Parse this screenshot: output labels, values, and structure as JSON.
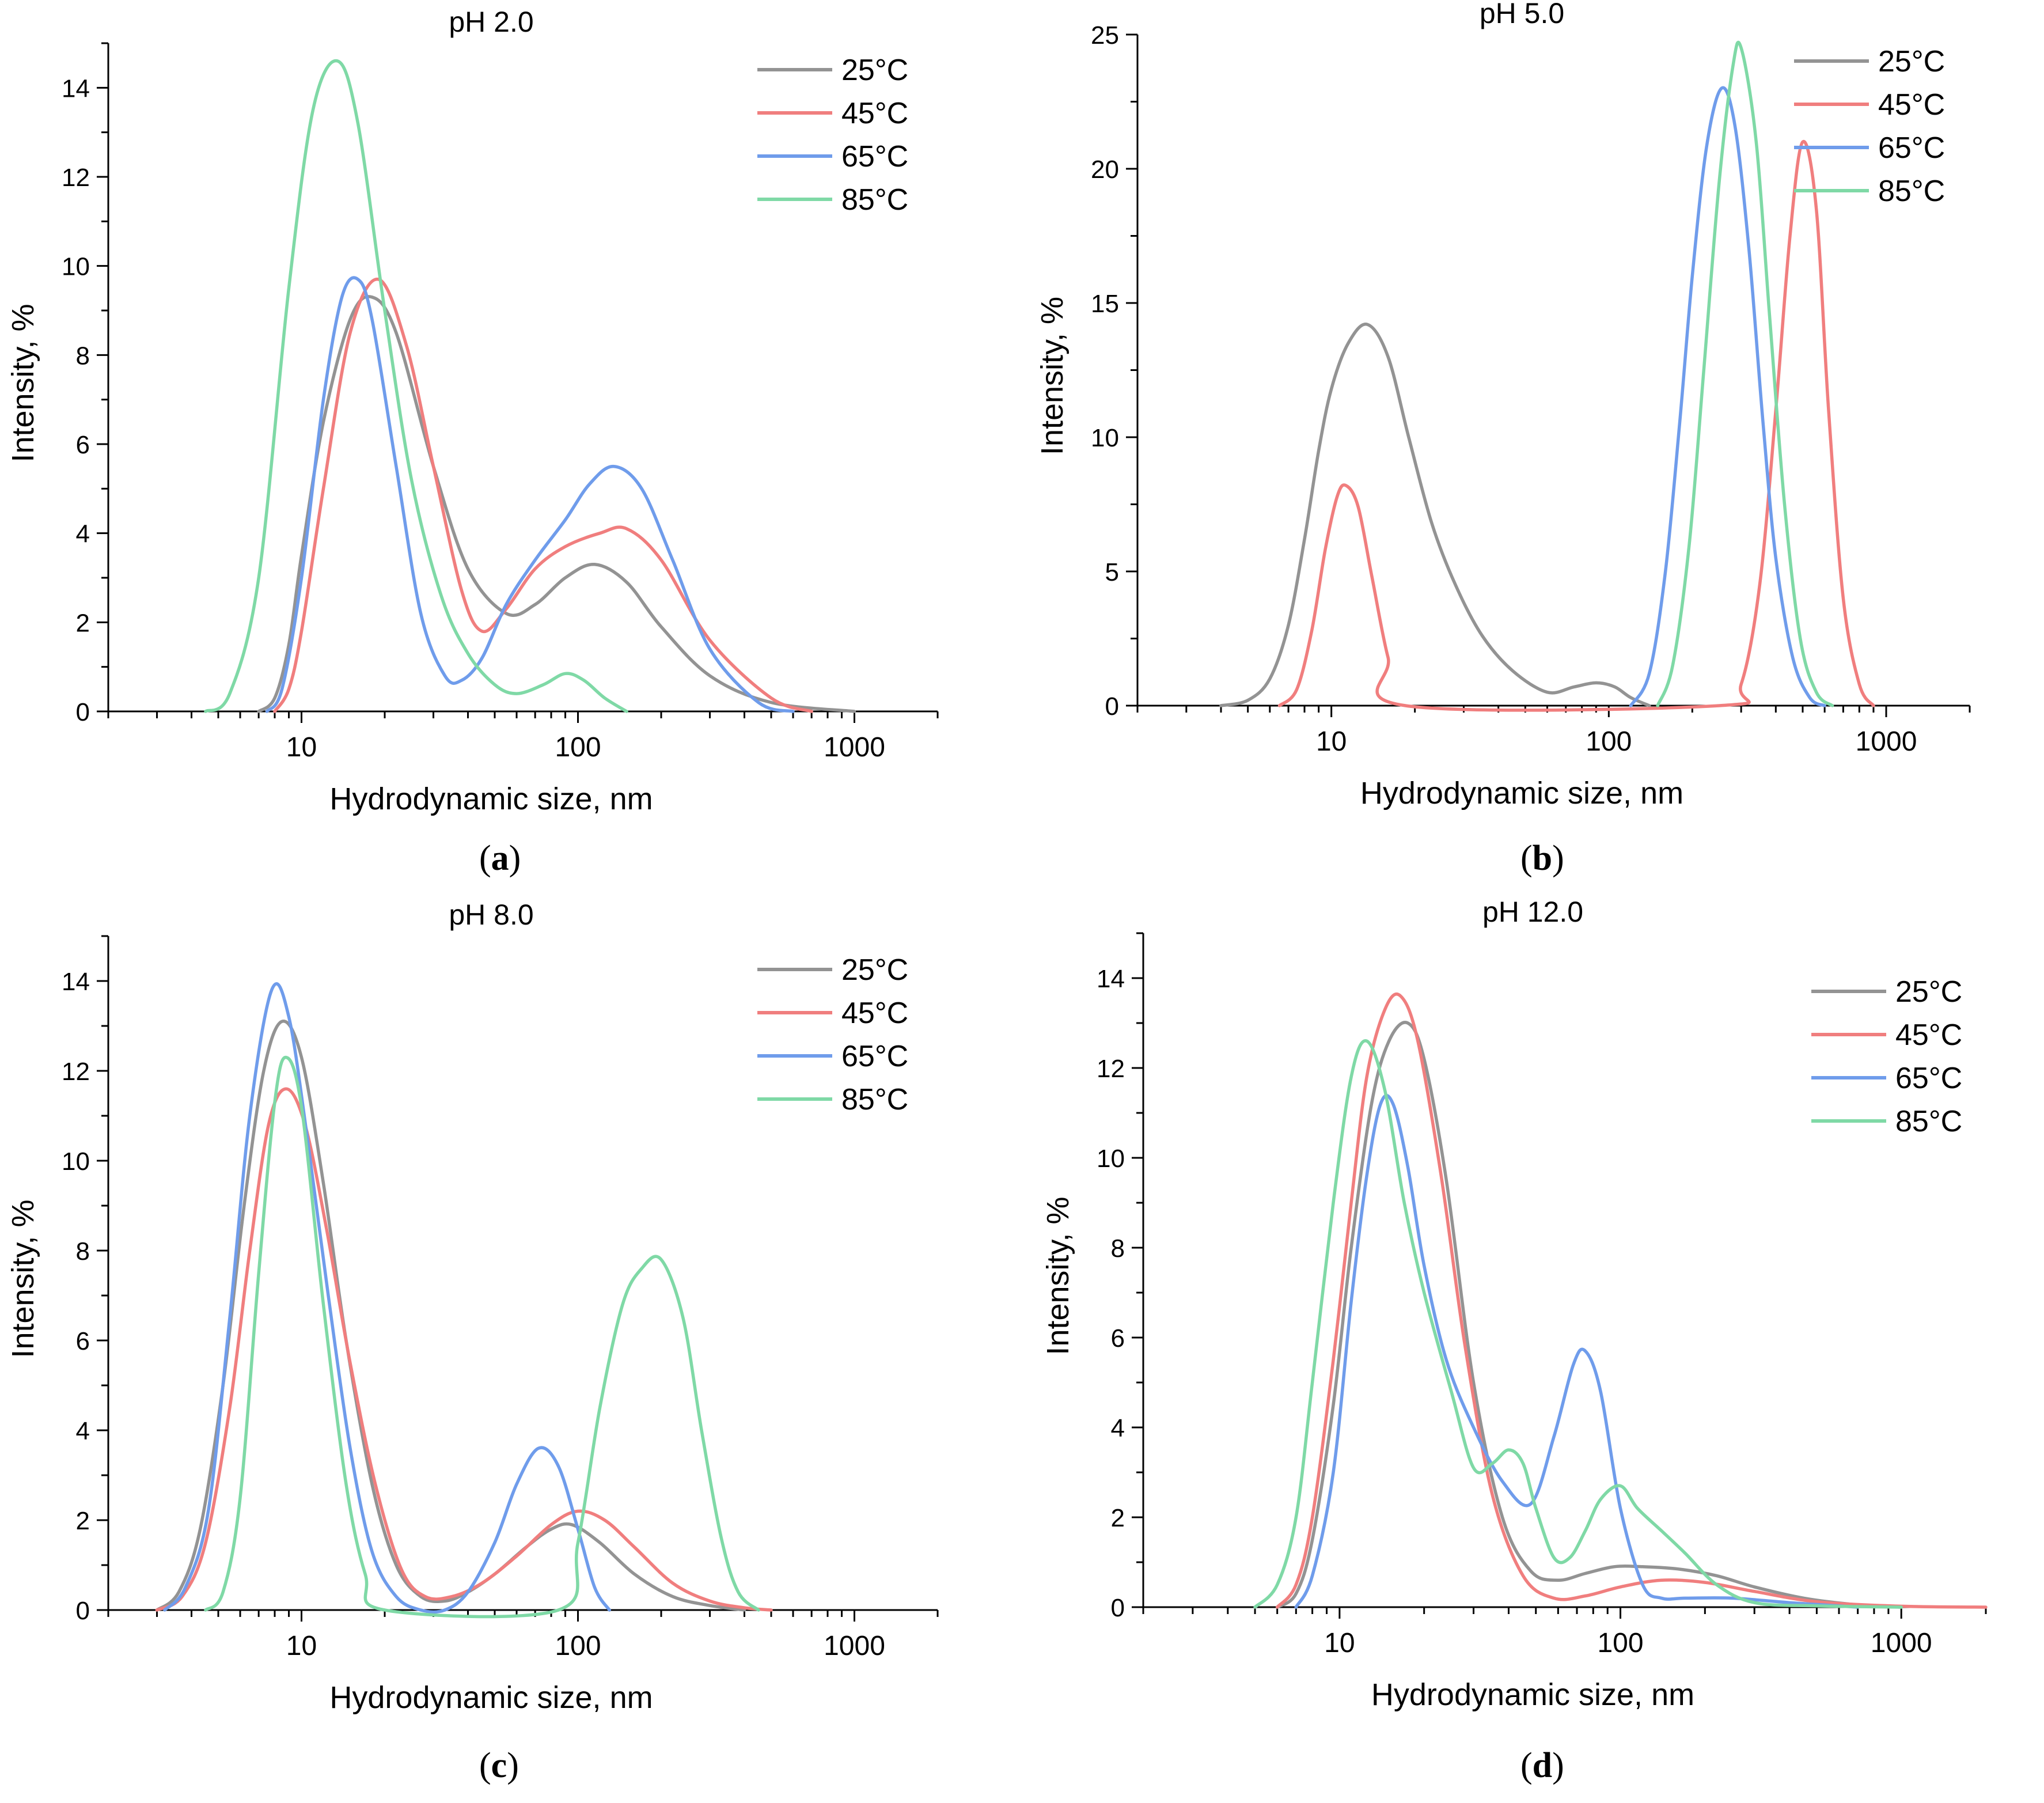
{
  "figure": {
    "legend_title": "",
    "colors": {
      "25C": "#939393",
      "45C": "#f07e7e",
      "65C": "#6f9ceb",
      "85C": "#7fd9a6"
    }
  },
  "panels": [
    {
      "id": "a",
      "caption_label": "a",
      "paren_open": "(",
      "paren_close": ")"
    },
    {
      "id": "b",
      "caption_label": "b",
      "paren_open": "(",
      "paren_close": ")"
    },
    {
      "id": "c",
      "caption_label": "c",
      "paren_open": "(",
      "paren_close": ")"
    },
    {
      "id": "d",
      "caption_label": "d",
      "paren_open": "(",
      "paren_close": ")"
    }
  ],
  "chart_data": [
    {
      "type": "line",
      "title": "pH 2.0",
      "xlabel": "Hydrodynamic size, nm",
      "ylabel": "Intensity, %",
      "xscale": "log",
      "xlim": [
        2.0,
        2000
      ],
      "xticks": [
        10,
        100,
        1000
      ],
      "xtick_labels": [
        "10",
        "100",
        "1000"
      ],
      "ylim": [
        0,
        15
      ],
      "yticks": [
        0,
        2,
        4,
        6,
        8,
        10,
        12,
        14
      ],
      "ytick_labels": [
        "0",
        "2",
        "4",
        "6",
        "8",
        "10",
        "12",
        "14"
      ],
      "legend_position": "top-right",
      "series": [
        {
          "name": "25°C",
          "color": "#939393",
          "x": [
            7,
            8,
            9,
            10,
            12,
            15,
            18,
            22,
            30,
            40,
            55,
            70,
            90,
            115,
            150,
            200,
            300,
            500,
            1000
          ],
          "y": [
            0,
            0.3,
            1.5,
            3.5,
            6.5,
            8.8,
            9.3,
            8.5,
            5.5,
            3.2,
            2.2,
            2.4,
            3.0,
            3.3,
            2.9,
            1.9,
            0.8,
            0.2,
            0
          ]
        },
        {
          "name": "45°C",
          "color": "#f07e7e",
          "x": [
            8,
            9,
            10,
            12,
            15,
            19,
            24,
            30,
            38,
            45,
            55,
            70,
            90,
            120,
            150,
            200,
            300,
            500,
            700
          ],
          "y": [
            0,
            0.5,
            1.8,
            5,
            8.5,
            9.7,
            8.2,
            5.5,
            2.7,
            1.8,
            2.3,
            3.2,
            3.7,
            4.0,
            4.1,
            3.4,
            1.6,
            0.3,
            0
          ]
        },
        {
          "name": "65°C",
          "color": "#6f9ceb",
          "x": [
            7.5,
            8.5,
            10,
            12,
            14,
            16,
            18,
            22,
            27,
            33,
            38,
            45,
            55,
            70,
            90,
            110,
            135,
            170,
            220,
            300,
            450,
            600
          ],
          "y": [
            0,
            0.5,
            3,
            7,
            9.3,
            9.7,
            8.8,
            5.5,
            2.2,
            0.8,
            0.7,
            1.2,
            2.4,
            3.4,
            4.3,
            5.1,
            5.5,
            5.0,
            3.4,
            1.4,
            0.2,
            0
          ]
        },
        {
          "name": "85°C",
          "color": "#7fd9a6",
          "x": [
            4.5,
            5.5,
            7,
            9,
            11,
            13.5,
            16,
            20,
            25,
            32,
            40,
            50,
            60,
            75,
            90,
            105,
            125,
            150
          ],
          "y": [
            0,
            0.4,
            3,
            9.5,
            13.5,
            14.6,
            13.2,
            9,
            5.2,
            2.6,
            1.3,
            0.6,
            0.4,
            0.6,
            0.85,
            0.7,
            0.3,
            0
          ]
        }
      ]
    },
    {
      "type": "line",
      "title": "pH 5.0",
      "xlabel": "Hydrodynamic size, nm",
      "ylabel": "Intensity, %",
      "xscale": "log",
      "xlim": [
        2.0,
        2000
      ],
      "xticks": [
        10,
        100,
        1000
      ],
      "xtick_labels": [
        "10",
        "100",
        "1000"
      ],
      "ylim": [
        0,
        25
      ],
      "yticks": [
        0,
        5,
        10,
        15,
        20,
        25
      ],
      "ytick_labels": [
        "0",
        "5",
        "10",
        "15",
        "20",
        "25"
      ],
      "legend_position": "top-right",
      "series": [
        {
          "name": "25°C",
          "color": "#939393",
          "x": [
            4,
            5,
            6,
            7,
            8,
            9,
            10,
            11.5,
            13.5,
            16,
            19,
            23,
            28,
            35,
            45,
            60,
            75,
            90,
            105,
            120,
            140
          ],
          "y": [
            0,
            0.2,
            1,
            3,
            6.2,
            9.5,
            11.8,
            13.5,
            14.2,
            13.0,
            10,
            6.8,
            4.5,
            2.6,
            1.3,
            0.5,
            0.7,
            0.85,
            0.7,
            0.3,
            0
          ]
        },
        {
          "name": "45°C",
          "color": "#f07e7e",
          "x": [
            6.5,
            7.5,
            8.5,
            9.5,
            10.5,
            11.3,
            12.5,
            14,
            16,
            18.5,
            250,
            300,
            350,
            400,
            450,
            500,
            560,
            620,
            700,
            800,
            900
          ],
          "y": [
            0,
            0.6,
            2.8,
            5.8,
            7.8,
            8.2,
            7.4,
            4.8,
            1.8,
            0,
            0,
            0.8,
            4.5,
            11,
            17.5,
            21,
            18.5,
            11,
            4,
            0.8,
            0
          ]
        },
        {
          "name": "65°C",
          "color": "#6f9ceb",
          "x": [
            120,
            140,
            160,
            180,
            200,
            225,
            255,
            285,
            320,
            360,
            400,
            460,
            530,
            600
          ],
          "y": [
            0,
            1.2,
            5,
            10.5,
            16,
            20.8,
            23,
            21.6,
            17,
            10.5,
            5.5,
            1.8,
            0.3,
            0
          ]
        },
        {
          "name": "85°C",
          "color": "#7fd9a6",
          "x": [
            150,
            170,
            195,
            220,
            250,
            280,
            300,
            340,
            380,
            430,
            490,
            560,
            640
          ],
          "y": [
            0,
            1.5,
            6,
            12.5,
            19.5,
            23.8,
            24.5,
            21,
            14.5,
            7.5,
            2.5,
            0.5,
            0
          ]
        }
      ]
    },
    {
      "type": "line",
      "title": "pH 8.0",
      "xlabel": "Hydrodynamic size, nm",
      "ylabel": "Intensity, %",
      "xscale": "log",
      "xlim": [
        2.0,
        2000
      ],
      "xticks": [
        10,
        100,
        1000
      ],
      "xtick_labels": [
        "10",
        "100",
        "1000"
      ],
      "ylim": [
        0,
        15
      ],
      "yticks": [
        0,
        2,
        4,
        6,
        8,
        10,
        12,
        14
      ],
      "ytick_labels": [
        "0",
        "2",
        "4",
        "6",
        "8",
        "10",
        "12",
        "14"
      ],
      "legend_position": "top-right",
      "series": [
        {
          "name": "25°C",
          "color": "#939393",
          "x": [
            3,
            3.6,
            4.3,
            5.2,
            6.2,
            7.3,
            8.5,
            10,
            12,
            14.5,
            18,
            22,
            27,
            33,
            40,
            50,
            65,
            80,
            95,
            120,
            160,
            220,
            300,
            400
          ],
          "y": [
            0,
            0.4,
            1.8,
            5,
            9,
            12,
            13.1,
            12.3,
            9.5,
            6,
            2.8,
            1,
            0.3,
            0.2,
            0.4,
            0.8,
            1.4,
            1.8,
            1.9,
            1.5,
            0.8,
            0.3,
            0.1,
            0
          ]
        },
        {
          "name": "45°C",
          "color": "#f07e7e",
          "x": [
            3,
            3.7,
            4.5,
            5.5,
            6.5,
            7.6,
            8.8,
            10.3,
            12.3,
            15,
            18.5,
            23,
            28,
            35,
            45,
            60,
            80,
            100,
            125,
            160,
            220,
            300,
            400,
            500
          ],
          "y": [
            0,
            0.3,
            1.5,
            4.5,
            8,
            10.8,
            11.6,
            10.8,
            8.5,
            5.5,
            2.8,
            0.9,
            0.3,
            0.3,
            0.6,
            1.2,
            1.9,
            2.2,
            2.0,
            1.4,
            0.6,
            0.2,
            0.05,
            0
          ]
        },
        {
          "name": "65°C",
          "color": "#6f9ceb",
          "x": [
            3.2,
            3.8,
            4.6,
            5.5,
            6.5,
            7.8,
            9,
            10.5,
            12.5,
            15,
            18,
            22,
            27,
            33,
            40,
            50,
            60,
            72,
            85,
            100,
            115,
            130
          ],
          "y": [
            0,
            0.5,
            2.2,
            6.5,
            11,
            13.8,
            13.2,
            10.5,
            7,
            3.6,
            1.3,
            0.3,
            0,
            0,
            0.4,
            1.5,
            2.8,
            3.6,
            3.2,
            1.8,
            0.5,
            0
          ]
        },
        {
          "name": "85°C",
          "color": "#7fd9a6",
          "x": [
            4.5,
            5.2,
            6,
            7,
            8,
            8.8,
            10,
            12,
            14.5,
            17,
            20,
            85,
            100,
            120,
            145,
            170,
            200,
            240,
            280,
            330,
            380,
            450
          ],
          "y": [
            0,
            0.4,
            2.5,
            7.5,
            11.3,
            12.3,
            11.2,
            6.8,
            2.8,
            0.8,
            0,
            0,
            1.5,
            4.5,
            6.8,
            7.6,
            7.8,
            6.5,
            4,
            1.6,
            0.4,
            0
          ]
        }
      ]
    },
    {
      "type": "line",
      "title": "pH 12.0",
      "xlabel": "Hydrodynamic size, nm",
      "ylabel": "Intensity, %",
      "xscale": "log",
      "xlim": [
        2.0,
        2000
      ],
      "xticks": [
        10,
        100,
        1000
      ],
      "xtick_labels": [
        "10",
        "100",
        "1000"
      ],
      "ylim": [
        0,
        15
      ],
      "yticks": [
        0,
        2,
        4,
        6,
        8,
        10,
        12,
        14
      ],
      "ytick_labels": [
        "0",
        "2",
        "4",
        "6",
        "8",
        "10",
        "12",
        "14"
      ],
      "legend_position": "top-right",
      "series": [
        {
          "name": "25°C",
          "color": "#939393",
          "x": [
            6,
            7,
            8,
            9.5,
            11,
            13,
            15,
            17.5,
            20,
            24,
            30,
            38,
            48,
            60,
            75,
            95,
            120,
            160,
            220,
            300,
            450,
            700,
            1000
          ],
          "y": [
            0,
            0.3,
            1.5,
            4.5,
            8,
            11.2,
            12.6,
            13,
            12.2,
            9.5,
            5,
            2,
            0.8,
            0.6,
            0.75,
            0.9,
            0.9,
            0.85,
            0.7,
            0.45,
            0.2,
            0.05,
            0
          ]
        },
        {
          "name": "45°C",
          "color": "#f07e7e",
          "x": [
            6,
            7,
            8,
            9.5,
            11,
            12.5,
            14.5,
            16.5,
            19,
            23,
            28,
            35,
            45,
            58,
            75,
            100,
            140,
            200,
            300,
            500,
            1000,
            2000
          ],
          "y": [
            0,
            0.5,
            2,
            5.5,
            9,
            11.8,
            13.3,
            13.6,
            12.6,
            9.6,
            5.8,
            2.5,
            0.7,
            0.2,
            0.25,
            0.45,
            0.6,
            0.55,
            0.35,
            0.12,
            0.02,
            0
          ]
        },
        {
          "name": "65°C",
          "color": "#6f9ceb",
          "x": [
            7,
            8,
            9.5,
            11,
            12.5,
            14,
            15.5,
            17.5,
            20,
            24,
            30,
            38,
            48,
            58,
            68,
            75,
            85,
            100,
            120,
            140,
            170,
            250,
            400,
            700
          ],
          "y": [
            0,
            0.7,
            3,
            6.8,
            9.6,
            11.2,
            11.2,
            9.8,
            7.6,
            5.5,
            4.0,
            2.8,
            2.3,
            3.8,
            5.4,
            5.7,
            4.8,
            2.2,
            0.5,
            0.2,
            0.2,
            0.2,
            0.1,
            0
          ]
        },
        {
          "name": "85°C",
          "color": "#7fd9a6",
          "x": [
            5,
            6,
            7,
            8,
            9.5,
            11,
            12.5,
            14.5,
            17,
            20,
            25,
            30,
            35,
            40,
            45,
            50,
            58,
            66,
            75,
            85,
            100,
            115,
            140,
            170,
            220,
            300,
            500,
            1000
          ],
          "y": [
            0,
            0.5,
            2,
            5,
            9,
            11.8,
            12.6,
            11.5,
            9,
            7,
            4.8,
            3.1,
            3.2,
            3.5,
            3.2,
            2.2,
            1.1,
            1.1,
            1.7,
            2.4,
            2.7,
            2.2,
            1.7,
            1.2,
            0.5,
            0.1,
            0.03,
            0
          ]
        }
      ]
    }
  ]
}
